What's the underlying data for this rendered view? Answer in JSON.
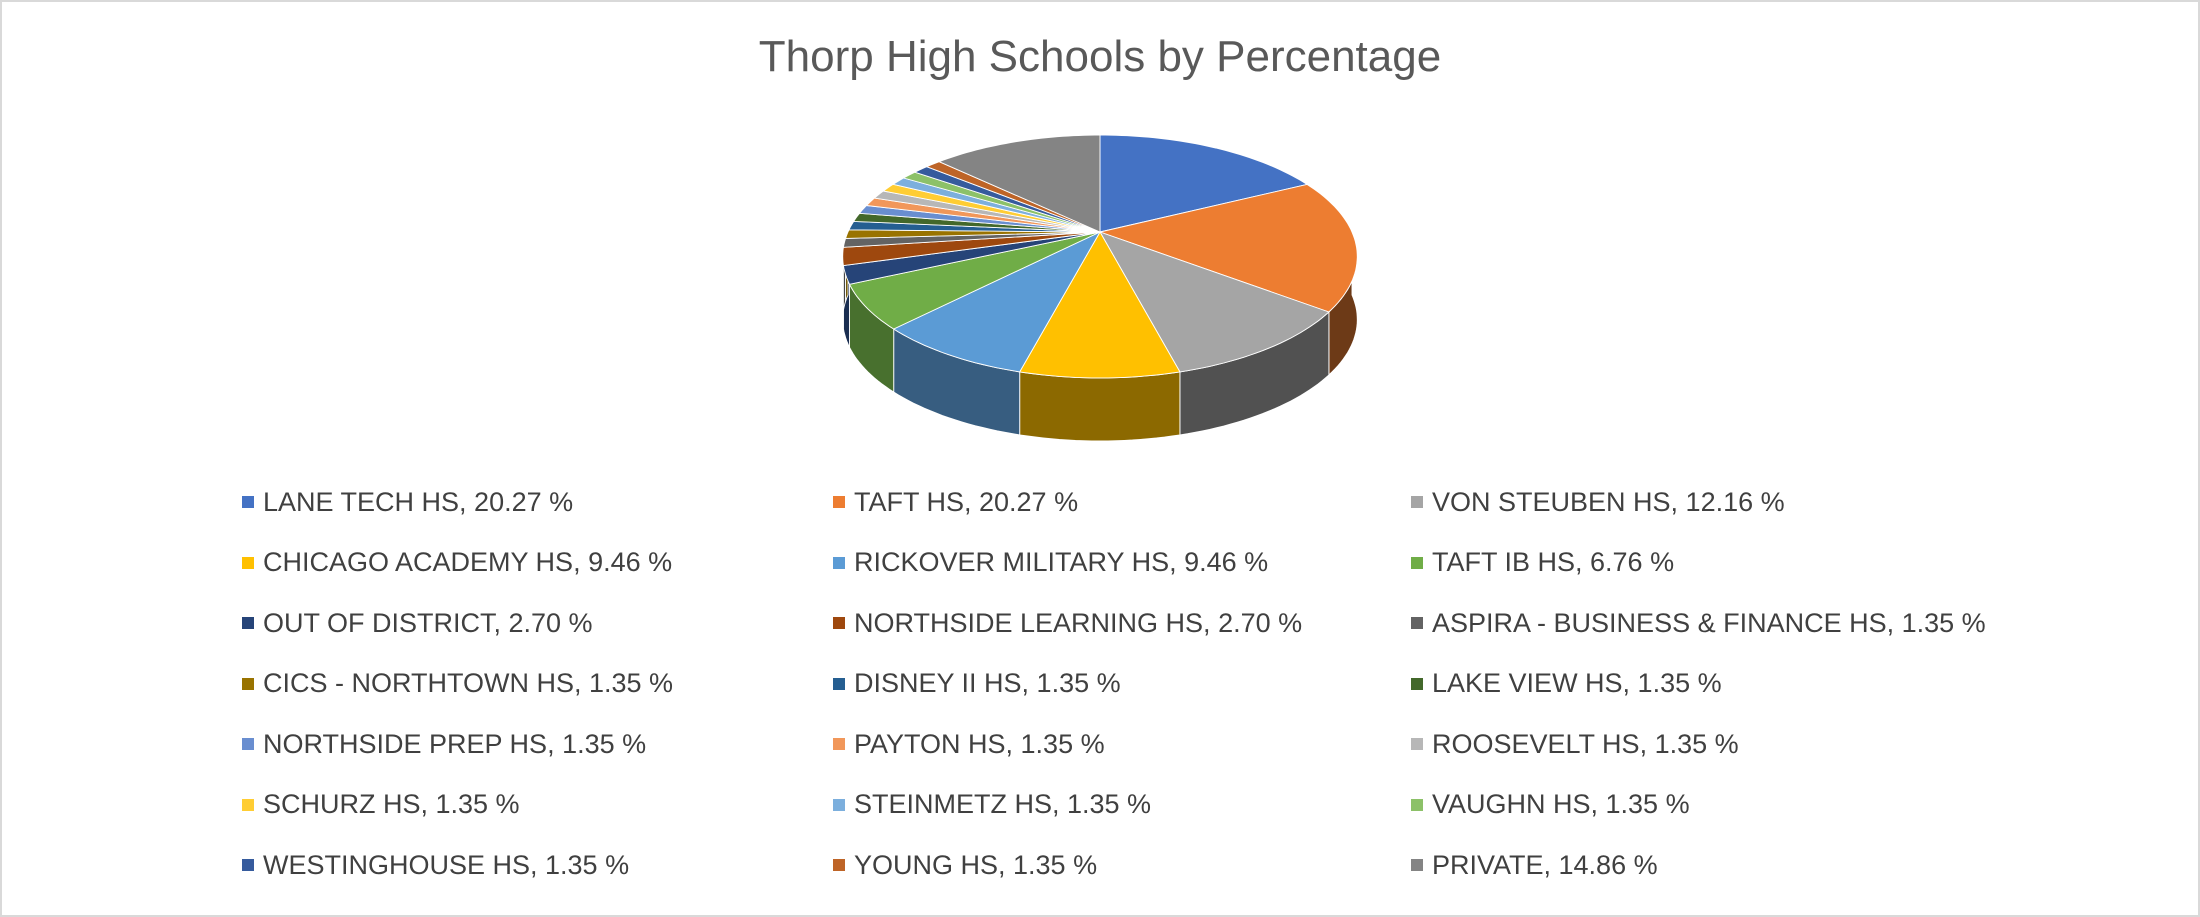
{
  "chart_data": {
    "type": "pie",
    "effect": "3d",
    "title": "Thorp High Schools by Percentage",
    "unit": "%",
    "legend_position": "bottom",
    "legend_columns": 3,
    "series": [
      {
        "label": "LANE TECH HS",
        "value": 20.27,
        "display": "LANE TECH HS, 20.27 %",
        "color": "#4472C4"
      },
      {
        "label": "TAFT HS",
        "value": 20.27,
        "display": "TAFT HS, 20.27 %",
        "color": "#ED7D31"
      },
      {
        "label": "VON STEUBEN HS",
        "value": 12.16,
        "display": "VON STEUBEN HS, 12.16 %",
        "color": "#A5A5A5"
      },
      {
        "label": "CHICAGO ACADEMY HS",
        "value": 9.46,
        "display": "CHICAGO ACADEMY HS, 9.46 %",
        "color": "#FFC000"
      },
      {
        "label": "RICKOVER MILITARY HS",
        "value": 9.46,
        "display": "RICKOVER MILITARY HS, 9.46 %",
        "color": "#5B9BD5"
      },
      {
        "label": "TAFT IB HS",
        "value": 6.76,
        "display": "TAFT IB HS, 6.76 %",
        "color": "#70AD47"
      },
      {
        "label": "OUT OF DISTRICT",
        "value": 2.7,
        "display": "OUT OF DISTRICT, 2.70 %",
        "color": "#264478"
      },
      {
        "label": "NORTHSIDE LEARNING HS",
        "value": 2.7,
        "display": "NORTHSIDE LEARNING HS, 2.70 %",
        "color": "#9E480E"
      },
      {
        "label": "ASPIRA - BUSINESS & FINANCE HS",
        "value": 1.35,
        "display": "ASPIRA - BUSINESS & FINANCE HS, 1.35 %",
        "color": "#636363"
      },
      {
        "label": "CICS - NORTHTOWN HS",
        "value": 1.35,
        "display": "CICS - NORTHTOWN HS, 1.35 %",
        "color": "#997300"
      },
      {
        "label": "DISNEY II HS",
        "value": 1.35,
        "display": "DISNEY II HS, 1.35 %",
        "color": "#255E91"
      },
      {
        "label": "LAKE VIEW HS",
        "value": 1.35,
        "display": "LAKE VIEW HS, 1.35 %",
        "color": "#43682B"
      },
      {
        "label": "NORTHSIDE PREP HS",
        "value": 1.35,
        "display": "NORTHSIDE PREP HS, 1.35 %",
        "color": "#698ED0"
      },
      {
        "label": "PAYTON HS",
        "value": 1.35,
        "display": "PAYTON HS, 1.35 %",
        "color": "#F1975A"
      },
      {
        "label": "ROOSEVELT HS",
        "value": 1.35,
        "display": "ROOSEVELT HS, 1.35 %",
        "color": "#B7B7B7"
      },
      {
        "label": "SCHURZ HS",
        "value": 1.35,
        "display": "SCHURZ HS, 1.35 %",
        "color": "#FFCD33"
      },
      {
        "label": "STEINMETZ HS",
        "value": 1.35,
        "display": "STEINMETZ HS, 1.35 %",
        "color": "#7CAFDD"
      },
      {
        "label": "VAUGHN HS",
        "value": 1.35,
        "display": "VAUGHN HS, 1.35 %",
        "color": "#8CC168"
      },
      {
        "label": "WESTINGHOUSE HS",
        "value": 1.35,
        "display": "WESTINGHOUSE HS, 1.35 %",
        "color": "#365B9D"
      },
      {
        "label": "YOUNG HS",
        "value": 1.35,
        "display": "YOUNG HS, 1.35 %",
        "color": "#BE6427"
      },
      {
        "label": "PRIVATE",
        "value": 14.86,
        "display": "PRIVATE, 14.86 %",
        "color": "#848484"
      }
    ]
  },
  "styles": {
    "background": "#FFFFFF",
    "frame_border_color": "#D9D9D9",
    "title_color": "#595959",
    "legend_text_color": "#404040",
    "slice_separator_color": "#FFFFFF"
  }
}
